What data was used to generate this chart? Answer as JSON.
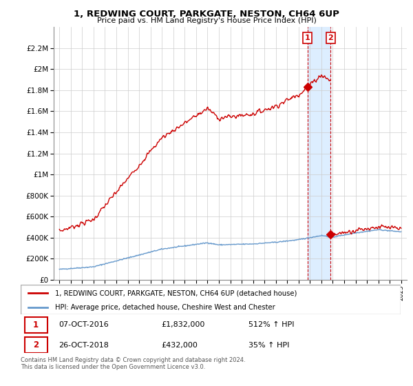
{
  "title": "1, REDWING COURT, PARKGATE, NESTON, CH64 6UP",
  "subtitle": "Price paid vs. HM Land Registry's House Price Index (HPI)",
  "legend_line1": "1, REDWING COURT, PARKGATE, NESTON, CH64 6UP (detached house)",
  "legend_line2": "HPI: Average price, detached house, Cheshire West and Chester",
  "transaction1_date": "07-OCT-2016",
  "transaction1_price": "£1,832,000",
  "transaction1_hpi": "512% ↑ HPI",
  "transaction2_date": "26-OCT-2018",
  "transaction2_price": "£432,000",
  "transaction2_hpi": "35% ↑ HPI",
  "footer": "Contains HM Land Registry data © Crown copyright and database right 2024.\nThis data is licensed under the Open Government Licence v3.0.",
  "red_color": "#cc0000",
  "blue_color": "#6699cc",
  "shade_color": "#ddeeff",
  "grid_color": "#cccccc",
  "ylim": [
    0,
    2400000
  ],
  "yticks": [
    0,
    200000,
    400000,
    600000,
    800000,
    1000000,
    1200000,
    1400000,
    1600000,
    1800000,
    2000000,
    2200000
  ],
  "ytick_labels": [
    "£0",
    "£200K",
    "£400K",
    "£600K",
    "£800K",
    "£1M",
    "£1.2M",
    "£1.4M",
    "£1.6M",
    "£1.8M",
    "£2M",
    "£2.2M"
  ],
  "sale1_year": 2016.77,
  "sale1_price": 1832000,
  "sale2_year": 2018.82,
  "sale2_price": 432000,
  "xmin": 1994.5,
  "xmax": 2025.5
}
